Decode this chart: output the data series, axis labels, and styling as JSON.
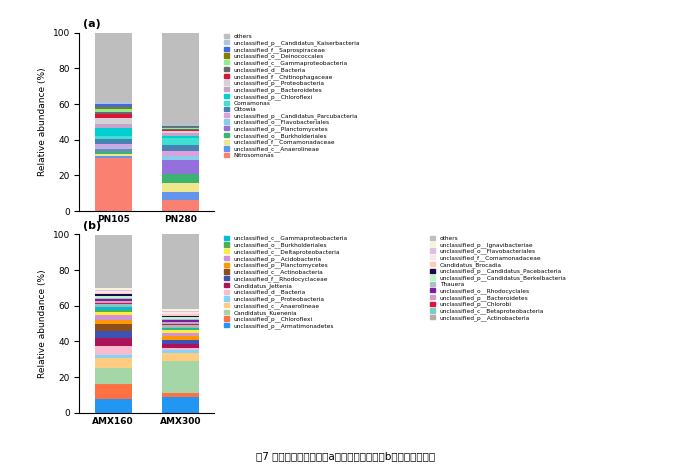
{
  "panel_a": {
    "samples": [
      "PN105",
      "PN280"
    ],
    "legend_order": [
      "others",
      "unclassified_p__Candidatus_Kaiserbacteria",
      "unclassified_f__Saprospiraceae",
      "unclassified_o__Deinococcales",
      "unclassified_c__Gammaproteobacteria",
      "unclassified_d__Bacteria",
      "unclassified_f__Chitinophagaceae",
      "unclassified_p__Proteobacteria",
      "unclassified_p__Bacteroidetes",
      "unclassified_p__Chloroflexi",
      "Comamonas",
      "Ottowia",
      "unclassified_p__Candidatus_Parcubacteria",
      "unclassified_o__Flavobacteriales",
      "unclassified_p__Planctomycetes",
      "unclassified_o__Burkholderiales",
      "unclassified_f__Comamonadaceae",
      "unclassified_c__Anaerolineae",
      "Nitrosomonas"
    ],
    "stack_order": [
      "Nitrosomonas",
      "unclassified_c__Anaerolineae",
      "unclassified_f__Comamonadaceae",
      "unclassified_o__Burkholderiales",
      "unclassified_p__Planctomycetes",
      "unclassified_o__Flavobacteriales",
      "unclassified_p__Candidatus_Parcubacteria",
      "Ottowia",
      "Comamonas",
      "unclassified_p__Chloroflexi",
      "unclassified_p__Bacteroidetes",
      "unclassified_p__Proteobacteria",
      "unclassified_f__Chitinophagaceae",
      "unclassified_d__Bacteria",
      "unclassified_c__Gammaproteobacteria",
      "unclassified_o__Deinococcales",
      "unclassified_f__Saprospiraceae",
      "unclassified_p__Candidatus_Kaiserbacteria",
      "others"
    ],
    "colors": {
      "others": "#bebebe",
      "unclassified_p__Candidatus_Kaiserbacteria": "#b0c4de",
      "unclassified_f__Saprospiraceae": "#4169e1",
      "unclassified_o__Deinococcales": "#808000",
      "unclassified_c__Gammaproteobacteria": "#90ee90",
      "unclassified_d__Bacteria": "#696969",
      "unclassified_f__Chitinophagaceae": "#dc143c",
      "unclassified_p__Proteobacteria": "#d3d3d3",
      "unclassified_p__Bacteroidetes": "#c8a2c8",
      "unclassified_p__Chloroflexi": "#00ced1",
      "Comamonas": "#40e0d0",
      "Ottowia": "#4682b4",
      "unclassified_p__Candidatus_Parcubacteria": "#dda0dd",
      "unclassified_o__Flavobacteriales": "#87ceeb",
      "unclassified_p__Planctomycetes": "#9370db",
      "unclassified_o__Burkholderiales": "#3cb371",
      "unclassified_f__Comamonadaceae": "#f0e68c",
      "unclassified_c__Anaerolineae": "#6495ed",
      "Nitrosomonas": "#fa8072"
    },
    "PN105": {
      "Nitrosomonas": 26.0,
      "unclassified_c__Anaerolineae": 1.0,
      "unclassified_f__Comamonadaceae": 1.0,
      "unclassified_o__Burkholderiales": 1.5,
      "unclassified_p__Planctomycetes": 1.0,
      "unclassified_o__Flavobacteriales": 1.0,
      "unclassified_p__Candidatus_Parcubacteria": 1.5,
      "Ottowia": 2.5,
      "Comamonas": 1.5,
      "unclassified_p__Chloroflexi": 4.0,
      "unclassified_p__Bacteroidetes": 1.5,
      "unclassified_p__Proteobacteria": 3.0,
      "unclassified_f__Chitinophagaceae": 2.0,
      "unclassified_d__Bacteria": 1.0,
      "unclassified_c__Gammaproteobacteria": 1.5,
      "unclassified_o__Deinococcales": 1.0,
      "unclassified_f__Saprospiraceae": 1.5,
      "unclassified_p__Candidatus_Kaiserbacteria": 1.0,
      "others": 34.0
    },
    "PN280": {
      "Nitrosomonas": 5.5,
      "unclassified_c__Anaerolineae": 4.0,
      "unclassified_f__Comamonadaceae": 4.5,
      "unclassified_o__Burkholderiales": 5.0,
      "unclassified_p__Planctomycetes": 7.0,
      "unclassified_o__Flavobacteriales": 2.0,
      "unclassified_p__Candidatus_Parcubacteria": 2.5,
      "Ottowia": 3.0,
      "Comamonas": 3.5,
      "unclassified_p__Chloroflexi": 1.0,
      "unclassified_p__Bacteroidetes": 1.5,
      "unclassified_p__Proteobacteria": 1.0,
      "unclassified_f__Chitinophagaceae": 0.5,
      "unclassified_d__Bacteria": 0.5,
      "unclassified_c__Gammaproteobacteria": 0.5,
      "unclassified_o__Deinococcales": 0.5,
      "unclassified_f__Saprospiraceae": 0.5,
      "unclassified_p__Candidatus_Kaiserbacteria": 1.0,
      "others": 46.5
    }
  },
  "panel_b": {
    "samples": [
      "AMX160",
      "AMX300"
    ],
    "legend_left": [
      "unclassified_c__Gammaproteobacteria",
      "unclassified_o__Burkholderiales",
      "unclassified_c__Deltaproteobacteria",
      "unclassified_p__Acidobacteria",
      "unclassified_p__Planctomycetes",
      "unclassified_c__Actinobacteria",
      "unclassified_f__Rhodocyclaceae",
      "Candidatus_Jettenia",
      "unclassified_d__Bacteria",
      "unclassified_p__Proteobacteria",
      "unclassified_c__Anaerolineae",
      "Candidatus_Kuenenia",
      "unclassified_p__Chloroflexi",
      "unclassified_p__Armatimonadetes"
    ],
    "legend_right": [
      "others",
      "unclassified_p__Ignavibacteriae",
      "unclassified_o__Flavobacteriales",
      "unclassified_f__Comamonadaceae",
      "Candidatus_Brocadia",
      "unclassified_p__Candidatus_Pacebacteria",
      "unclassified_p__Candidatus_Berkelbacteria",
      "Thauera",
      "unclassified_o__Rhodocyclales",
      "unclassified_p__Bacteroidetes",
      "unclassified_p__Chlorobi",
      "unclassified_c__Betaproteobacteria",
      "unclassified_p__Actinobacteria"
    ],
    "stack_order": [
      "unclassified_p__Armatimonadetes",
      "unclassified_p__Chloroflexi",
      "Candidatus_Kuenenia",
      "unclassified_c__Anaerolineae",
      "unclassified_p__Proteobacteria",
      "unclassified_d__Bacteria",
      "Candidatus_Jettenia",
      "unclassified_f__Rhodocyclaceae",
      "unclassified_c__Actinobacteria",
      "unclassified_p__Planctomycetes",
      "unclassified_p__Acidobacteria",
      "unclassified_c__Deltaproteobacteria",
      "unclassified_o__Burkholderiales",
      "unclassified_c__Gammaproteobacteria",
      "unclassified_p__Actinobacteria",
      "unclassified_c__Betaproteobacteria",
      "unclassified_p__Chlorobi",
      "unclassified_p__Bacteroidetes",
      "unclassified_o__Rhodocyclales",
      "Thauera",
      "unclassified_p__Candidatus_Berkelbacteria",
      "unclassified_p__Candidatus_Pacebacteria",
      "Candidatus_Brocadia",
      "unclassified_f__Comamonadaceae",
      "unclassified_o__Flavobacteriales",
      "unclassified_p__Ignavibacteriae",
      "others"
    ],
    "colors": {
      "unclassified_c__Gammaproteobacteria": "#00bcd4",
      "unclassified_o__Burkholderiales": "#4caf50",
      "unclassified_c__Deltaproteobacteria": "#ffeb3b",
      "unclassified_p__Acidobacteria": "#ce93d8",
      "unclassified_p__Planctomycetes": "#ff9800",
      "unclassified_c__Actinobacteria": "#8d4e1a",
      "unclassified_f__Rhodocyclaceae": "#3f51b5",
      "Candidatus_Jettenia": "#ad1457",
      "unclassified_d__Bacteria": "#f8bbd0",
      "unclassified_p__Proteobacteria": "#81d4fa",
      "unclassified_c__Anaerolineae": "#ffcc80",
      "Candidatus_Kuenenia": "#a5d6a7",
      "unclassified_p__Chloroflexi": "#ff7043",
      "unclassified_p__Armatimonadetes": "#2196f3",
      "others": "#bebebe",
      "unclassified_p__Ignavibacteriae": "#f5f5dc",
      "unclassified_o__Flavobacteriales": "#e1bee7",
      "unclassified_f__Comamonadaceae": "#fce4ec",
      "Candidatus_Brocadia": "#ffccbc",
      "unclassified_p__Candidatus_Pacebacteria": "#1a0a52",
      "unclassified_p__Candidatus_Berkelbacteria": "#b9f6ca",
      "Thauera": "#b0bec5",
      "unclassified_o__Rhodocyclales": "#7b1fa2",
      "unclassified_p__Bacteroidetes": "#c8a2c8",
      "unclassified_p__Chlorobi": "#dc143c",
      "unclassified_c__Betaproteobacteria": "#80cbc4",
      "unclassified_p__Actinobacteria": "#bcaaa4"
    },
    "AMX160": {
      "unclassified_p__Armatimonadetes": 8.5,
      "unclassified_p__Chloroflexi": 9.0,
      "Candidatus_Kuenenia": 10.0,
      "unclassified_c__Anaerolineae": 6.0,
      "unclassified_p__Proteobacteria": 2.0,
      "unclassified_d__Bacteria": 5.5,
      "Candidatus_Jettenia": 5.0,
      "unclassified_f__Rhodocyclaceae": 4.5,
      "unclassified_c__Actinobacteria": 4.5,
      "unclassified_p__Planctomycetes": 2.0,
      "unclassified_p__Acidobacteria": 3.5,
      "unclassified_c__Deltaproteobacteria": 1.5,
      "unclassified_o__Burkholderiales": 1.5,
      "unclassified_c__Gammaproteobacteria": 1.5,
      "unclassified_p__Actinobacteria": 1.0,
      "unclassified_c__Betaproteobacteria": 1.0,
      "unclassified_p__Chlorobi": 1.0,
      "unclassified_p__Bacteroidetes": 1.0,
      "unclassified_o__Rhodocyclales": 1.0,
      "Thauera": 1.0,
      "unclassified_p__Candidatus_Berkelbacteria": 1.0,
      "unclassified_p__Candidatus_Pacebacteria": 1.0,
      "Candidatus_Brocadia": 1.0,
      "unclassified_f__Comamonadaceae": 1.0,
      "unclassified_o__Flavobacteriales": 1.0,
      "unclassified_p__Ignavibacteriae": 1.0,
      "others": 33.0
    },
    "AMX300": {
      "unclassified_p__Armatimonadetes": 10.0,
      "unclassified_p__Chloroflexi": 2.0,
      "Candidatus_Kuenenia": 20.0,
      "unclassified_c__Anaerolineae": 5.0,
      "unclassified_p__Proteobacteria": 2.0,
      "unclassified_d__Bacteria": 1.0,
      "Candidatus_Jettenia": 3.0,
      "unclassified_f__Rhodocyclaceae": 2.0,
      "unclassified_c__Actinobacteria": 0.5,
      "unclassified_p__Planctomycetes": 2.0,
      "unclassified_p__Acidobacteria": 2.0,
      "unclassified_c__Deltaproteobacteria": 2.0,
      "unclassified_o__Burkholderiales": 0.5,
      "unclassified_c__Gammaproteobacteria": 0.5,
      "unclassified_p__Actinobacteria": 1.0,
      "unclassified_c__Betaproteobacteria": 1.0,
      "unclassified_p__Chlorobi": 1.0,
      "unclassified_p__Bacteroidetes": 1.0,
      "unclassified_o__Rhodocyclales": 1.0,
      "Thauera": 1.0,
      "unclassified_p__Candidatus_Berkelbacteria": 1.0,
      "unclassified_p__Candidatus_Pacebacteria": 1.0,
      "Candidatus_Brocadia": 1.0,
      "unclassified_f__Comamonadaceae": 1.0,
      "unclassified_o__Flavobacteriales": 1.0,
      "unclassified_p__Ignavibacteriae": 1.0,
      "others": 46.5
    }
  },
  "figure_caption": "图7 属水平微生物组成（a）短程礴化段和（b）厄氧氨氧化段"
}
